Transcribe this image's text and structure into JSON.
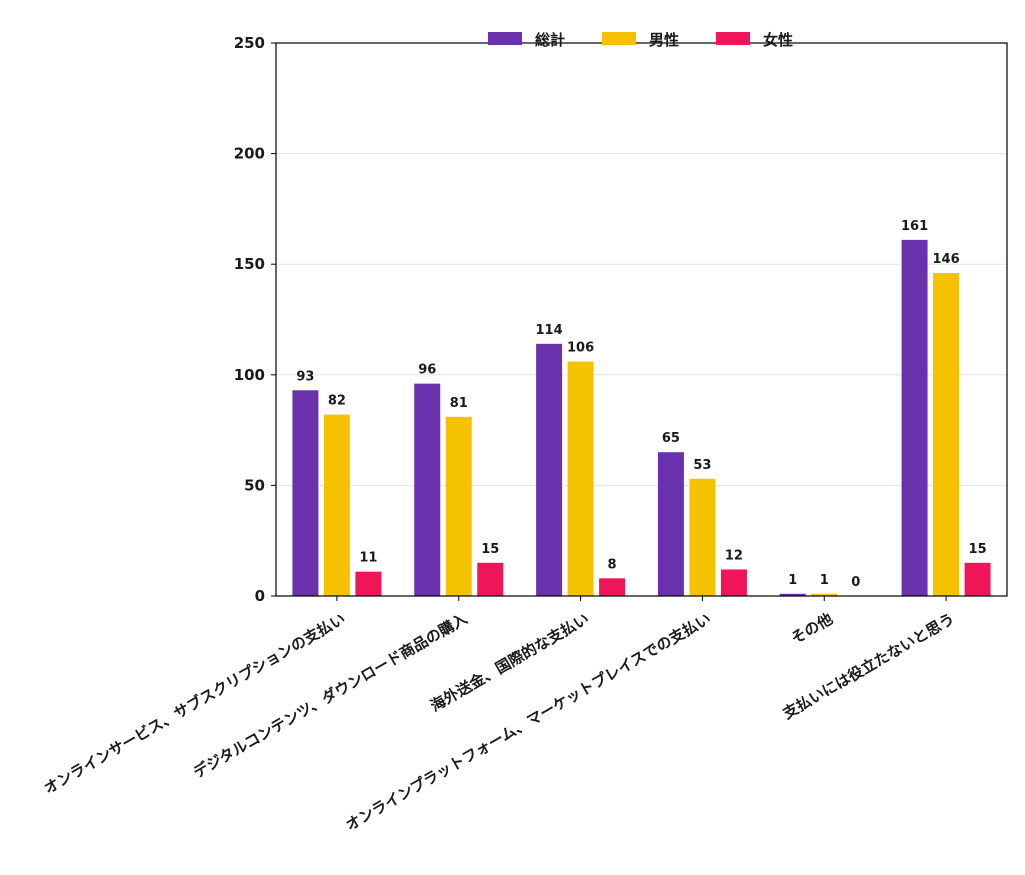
{
  "chart_data": {
    "type": "bar",
    "categories": [
      "オンラインサービス、サブスクリプションの支払い",
      "デジタルコンテンツ、ダウンロード商品の購入",
      "海外送金、国際的な支払い",
      "オンラインプラットフォーム、マーケットプレイスでの支払い",
      "その他",
      "支払いには役立たないと思う"
    ],
    "series": [
      {
        "name": "総計",
        "color": "#6a31ad",
        "values": [
          93,
          96,
          114,
          65,
          1,
          161
        ]
      },
      {
        "name": "男性",
        "color": "#f5c200",
        "values": [
          82,
          81,
          106,
          53,
          1,
          146
        ]
      },
      {
        "name": "女性",
        "color": "#ee1559",
        "values": [
          11,
          15,
          8,
          12,
          0,
          15
        ]
      }
    ],
    "ylim": [
      0,
      250
    ],
    "yticks": [
      0,
      50,
      100,
      150,
      200,
      250
    ],
    "grid": true,
    "legend_position": "top-center",
    "title": "",
    "xlabel": "",
    "ylabel": ""
  }
}
